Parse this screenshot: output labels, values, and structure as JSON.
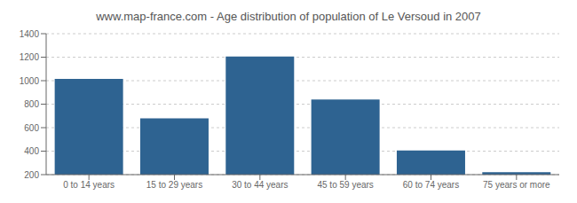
{
  "chart_data": {
    "type": "bar",
    "title": "www.map-france.com - Age distribution of population of Le Versoud in 2007",
    "categories": [
      "0 to 14 years",
      "15 to 29 years",
      "30 to 44 years",
      "45 to 59 years",
      "60 to 74 years",
      "75 years or more"
    ],
    "values": [
      1015,
      680,
      1205,
      840,
      405,
      220
    ],
    "color": "#2e6391",
    "ylim": [
      200,
      1400
    ],
    "yticks": [
      200,
      400,
      600,
      800,
      1000,
      1200,
      1400
    ],
    "grid": true
  }
}
